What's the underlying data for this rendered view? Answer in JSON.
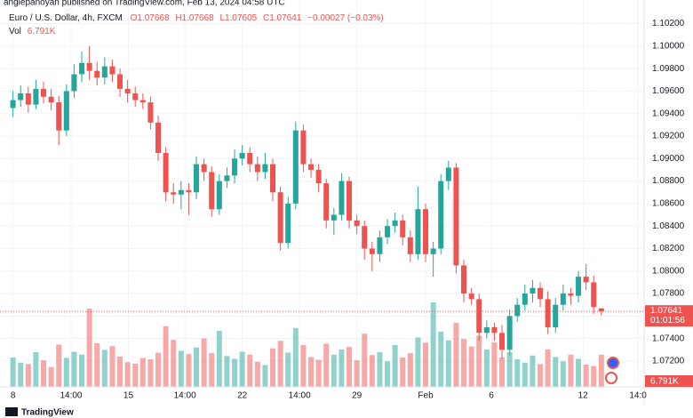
{
  "header": {
    "byline": "angiepanoyan published on TradingView.com, Feb 13, 2024 04:58 UTC",
    "brand": "TradingView"
  },
  "chart_data": {
    "type": "candlestick",
    "legend": {
      "symbol": "Euro / U.S. Dollar, 4h, FXCM",
      "open": "O1.07668",
      "high": "H1.07668",
      "low": "L1.07605",
      "close": "C1.07641",
      "change": "−0.00027 (−0.03%)",
      "volume_name": "Vol",
      "volume": "6.791K"
    },
    "up_color": "#26a69a",
    "down_color": "#ef5350",
    "x": [
      0,
      1,
      2,
      3,
      4,
      5,
      6,
      7,
      8,
      9,
      10,
      11,
      12,
      13,
      14,
      15,
      16,
      17,
      18,
      19,
      20,
      21,
      22,
      23,
      24,
      25,
      26,
      27,
      28,
      29,
      30,
      31,
      32,
      33,
      34,
      35,
      36,
      37,
      38,
      39,
      40,
      41,
      42,
      43,
      44,
      45,
      46,
      47,
      48,
      49,
      50,
      51,
      52,
      53,
      54,
      55,
      56,
      57,
      58,
      59,
      60,
      61,
      62,
      63,
      64,
      65,
      66,
      67,
      68,
      69,
      70,
      71,
      72,
      73,
      74,
      75,
      76,
      77
    ],
    "open": [
      1.0945,
      1.0952,
      1.0958,
      1.0948,
      1.0962,
      1.0955,
      1.095,
      1.0925,
      1.096,
      1.0975,
      1.0985,
      1.0978,
      1.0972,
      1.0982,
      1.0975,
      1.0962,
      1.0958,
      1.0952,
      1.095,
      1.0932,
      1.0905,
      1.087,
      1.0868,
      1.0872,
      1.087,
      1.0895,
      1.0888,
      1.0855,
      1.088,
      1.0885,
      1.09,
      1.0905,
      1.0895,
      1.0888,
      1.0895,
      1.087,
      1.0825,
      1.086,
      1.0925,
      1.0895,
      1.089,
      1.0878,
      1.0845,
      1.085,
      1.088,
      1.0845,
      1.084,
      1.082,
      1.0815,
      1.083,
      1.084,
      1.0845,
      1.083,
      1.0815,
      1.0855,
      1.0815,
      1.082,
      1.088,
      1.0892,
      1.0805,
      1.078,
      1.0775,
      1.0745,
      1.075,
      1.0745,
      1.073,
      1.076,
      1.077,
      1.078,
      1.0785,
      1.0775,
      1.075,
      1.077,
      1.078,
      1.0778,
      1.0795,
      1.079,
      1.07668
    ],
    "high": [
      1.096,
      1.0965,
      1.0964,
      1.097,
      1.0968,
      1.0962,
      1.0956,
      1.0966,
      1.0984,
      1.0995,
      1.1,
      1.0986,
      1.099,
      1.0988,
      1.098,
      1.097,
      1.0964,
      1.0958,
      1.0955,
      1.0938,
      1.091,
      1.0878,
      1.088,
      1.0878,
      1.0902,
      1.09,
      1.0893,
      1.0886,
      1.0892,
      1.0908,
      1.0912,
      1.091,
      1.0902,
      1.0905,
      1.09,
      1.0875,
      1.0866,
      1.0933,
      1.093,
      1.09,
      1.0895,
      1.0882,
      1.0856,
      1.0887,
      1.0884,
      1.085,
      1.0845,
      1.0826,
      1.0836,
      1.0846,
      1.0852,
      1.085,
      1.0836,
      1.0875,
      1.086,
      1.0826,
      1.0886,
      1.0898,
      1.0896,
      1.081,
      1.0785,
      1.078,
      1.0756,
      1.0754,
      1.0752,
      1.0766,
      1.0776,
      1.0788,
      1.0792,
      1.079,
      1.0782,
      1.0776,
      1.0788,
      1.0785,
      1.08,
      1.0806,
      1.0796,
      1.07668
    ],
    "low": [
      1.0937,
      1.0946,
      1.0941,
      1.0944,
      1.0949,
      1.0943,
      1.0912,
      1.092,
      1.0954,
      1.0968,
      1.097,
      1.0965,
      1.0966,
      1.0968,
      1.0955,
      1.095,
      1.0946,
      1.0944,
      1.0926,
      1.0898,
      1.0862,
      1.086,
      1.0855,
      1.085,
      1.0864,
      1.088,
      1.0848,
      1.085,
      1.0874,
      1.0878,
      1.0894,
      1.0888,
      1.088,
      1.0882,
      1.0862,
      1.0818,
      1.082,
      1.0855,
      1.0888,
      1.0883,
      1.087,
      1.0838,
      1.0832,
      1.0845,
      1.0838,
      1.0833,
      1.081,
      1.08,
      1.0808,
      1.0824,
      1.0834,
      1.0823,
      1.0808,
      1.081,
      1.0808,
      1.0795,
      1.0815,
      1.0872,
      1.0798,
      1.0772,
      1.077,
      1.0738,
      1.074,
      1.0738,
      1.0722,
      1.0725,
      1.0755,
      1.0765,
      1.0772,
      1.0768,
      1.0744,
      1.0745,
      1.0765,
      1.077,
      1.0772,
      1.0783,
      1.0762,
      1.07605
    ],
    "close": [
      1.0952,
      1.0958,
      1.0948,
      1.0962,
      1.0955,
      1.095,
      1.0925,
      1.096,
      1.0975,
      1.0985,
      1.0978,
      1.0972,
      1.0982,
      1.0975,
      1.0962,
      1.0958,
      1.0952,
      1.095,
      1.0932,
      1.0905,
      1.087,
      1.0868,
      1.0872,
      1.087,
      1.0895,
      1.0888,
      1.0855,
      1.088,
      1.0885,
      1.09,
      1.0905,
      1.0895,
      1.0888,
      1.0895,
      1.087,
      1.0825,
      1.086,
      1.0925,
      1.0895,
      1.089,
      1.0878,
      1.0845,
      1.085,
      1.088,
      1.0845,
      1.084,
      1.082,
      1.0815,
      1.083,
      1.084,
      1.0845,
      1.083,
      1.0815,
      1.0855,
      1.0815,
      1.082,
      1.088,
      1.0892,
      1.0805,
      1.078,
      1.0775,
      1.0745,
      1.075,
      1.0745,
      1.073,
      1.076,
      1.077,
      1.078,
      1.0785,
      1.0775,
      1.075,
      1.077,
      1.078,
      1.0778,
      1.0795,
      1.079,
      1.0768,
      1.07641
    ],
    "volume": [
      6200,
      5100,
      4800,
      7300,
      5600,
      4200,
      8900,
      6100,
      7400,
      6800,
      16500,
      9200,
      7800,
      8600,
      6400,
      5200,
      4900,
      6100,
      5800,
      7200,
      12800,
      9900,
      7600,
      6900,
      8300,
      10200,
      7100,
      11800,
      6500,
      5900,
      7400,
      6800,
      5300,
      4600,
      8100,
      9700,
      7200,
      12400,
      8800,
      6300,
      5700,
      9100,
      6800,
      7900,
      8400,
      5600,
      11200,
      6700,
      7300,
      5400,
      8800,
      6200,
      7100,
      10400,
      9300,
      17800,
      11600,
      9800,
      13500,
      10100,
      8500,
      10800,
      7900,
      9400,
      6200,
      7300,
      5800,
      5100,
      6600,
      4800,
      7900,
      6300,
      5400,
      6800,
      5900,
      4700,
      4400,
      6791
    ],
    "last_price": 1.07641,
    "countdown": "01:01:56",
    "last_volume_label": "6.791K",
    "xlim": [
      -1.7,
      82.6
    ],
    "ylim": [
      1.0697,
      1.1041
    ],
    "xticks": [
      {
        "value": 0,
        "label": "8"
      },
      {
        "value": 7.6,
        "label": "14:00"
      },
      {
        "value": 15.1,
        "label": "15"
      },
      {
        "value": 22.5,
        "label": "14:00"
      },
      {
        "value": 30,
        "label": "22"
      },
      {
        "value": 37.5,
        "label": "14:00"
      },
      {
        "value": 45,
        "label": "29"
      },
      {
        "value": 54,
        "label": "Feb"
      },
      {
        "value": 62.6,
        "label": "6"
      },
      {
        "value": 74.6,
        "label": "12"
      },
      {
        "value": 81.8,
        "label": "14:0"
      }
    ],
    "yticks": [
      {
        "value": 1.072,
        "label": "1.07200"
      },
      {
        "value": 1.074,
        "label": "1.07400"
      },
      {
        "value": 1.076,
        "label": "1.07600"
      },
      {
        "value": 1.078,
        "label": "1.07800"
      },
      {
        "value": 1.08,
        "label": "1.08000"
      },
      {
        "value": 1.082,
        "label": "1.08200"
      },
      {
        "value": 1.084,
        "label": "1.08400"
      },
      {
        "value": 1.086,
        "label": "1.08600"
      },
      {
        "value": 1.088,
        "label": "1.08800"
      },
      {
        "value": 1.09,
        "label": "1.09000"
      },
      {
        "value": 1.092,
        "label": "1.09200"
      },
      {
        "value": 1.094,
        "label": "1.09400"
      },
      {
        "value": 1.096,
        "label": "1.09600"
      },
      {
        "value": 1.098,
        "label": "1.09800"
      },
      {
        "value": 1.1,
        "label": "1.10000"
      },
      {
        "value": 1.102,
        "label": "1.10200"
      }
    ],
    "grid": true
  }
}
